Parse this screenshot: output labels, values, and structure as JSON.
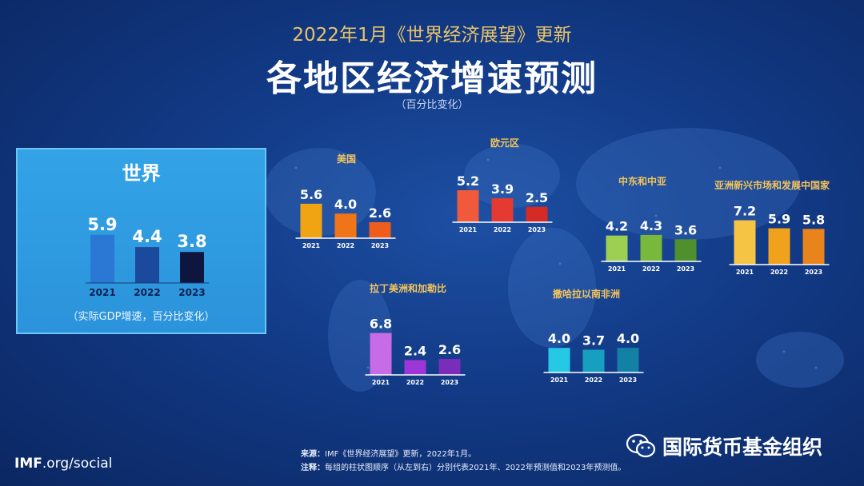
{
  "header": {
    "subtitle": "2022年1月《世界经济展望》更新",
    "title": "各地区经济增速预测",
    "unit": "（百分比变化）"
  },
  "world_panel": {
    "title": "世界",
    "note": "（实际GDP增速，百分比变化）"
  },
  "footer": {
    "brand_bold": "IMF",
    "brand_rest": ".org/social",
    "source_label": "来源：",
    "source_text": "IMF《世界经济展望》更新，2022年1月。",
    "note_label": "注释：",
    "note_text": "每组的柱状图顺序（从左到右）分别代表2021年、2022年预测值和2023年预测值。",
    "wechat_name": "国际货币基金组织",
    "wechat_icon": "wechat-icon"
  },
  "chart_data": [
    {
      "type": "bar",
      "id": "world",
      "title": "世界",
      "categories": [
        "2021",
        "2022",
        "2023"
      ],
      "values": [
        5.9,
        4.4,
        3.8
      ],
      "colors": [
        "#2a78d3",
        "#1b4a9c",
        "#0e1640"
      ]
    },
    {
      "type": "bar",
      "id": "usa",
      "title": "美国",
      "categories": [
        "2021",
        "2022",
        "2023"
      ],
      "values": [
        5.6,
        4.0,
        2.6
      ],
      "colors": [
        "#f0a413",
        "#f07519",
        "#ee5d1c"
      ]
    },
    {
      "type": "bar",
      "id": "euro",
      "title": "欧元区",
      "categories": [
        "2021",
        "2022",
        "2023"
      ],
      "values": [
        5.2,
        3.9,
        2.5
      ],
      "colors": [
        "#f05a3a",
        "#e43a31",
        "#d62a25"
      ]
    },
    {
      "type": "bar",
      "id": "mena",
      "title": "中东和中亚",
      "categories": [
        "2021",
        "2022",
        "2023"
      ],
      "values": [
        4.2,
        4.3,
        3.6
      ],
      "colors": [
        "#9ccf52",
        "#78b83a",
        "#4f8f2c"
      ]
    },
    {
      "type": "bar",
      "id": "asia",
      "title": "亚洲新兴市场和发展中国家",
      "categories": [
        "2021",
        "2022",
        "2023"
      ],
      "values": [
        7.2,
        5.9,
        5.8
      ],
      "colors": [
        "#f6c444",
        "#f0a21d",
        "#e8841b"
      ]
    },
    {
      "type": "bar",
      "id": "latam",
      "title": "拉丁美洲和加勒比",
      "categories": [
        "2021",
        "2022",
        "2023"
      ],
      "values": [
        6.8,
        2.4,
        2.6
      ],
      "colors": [
        "#c86be6",
        "#9d36d8",
        "#7a2dbb"
      ]
    },
    {
      "type": "bar",
      "id": "ssa",
      "title": "撒哈拉以南非洲",
      "categories": [
        "2021",
        "2022",
        "2023"
      ],
      "values": [
        4.0,
        3.7,
        4.0
      ],
      "colors": [
        "#25c9e6",
        "#179fbf",
        "#1380a6"
      ]
    }
  ]
}
